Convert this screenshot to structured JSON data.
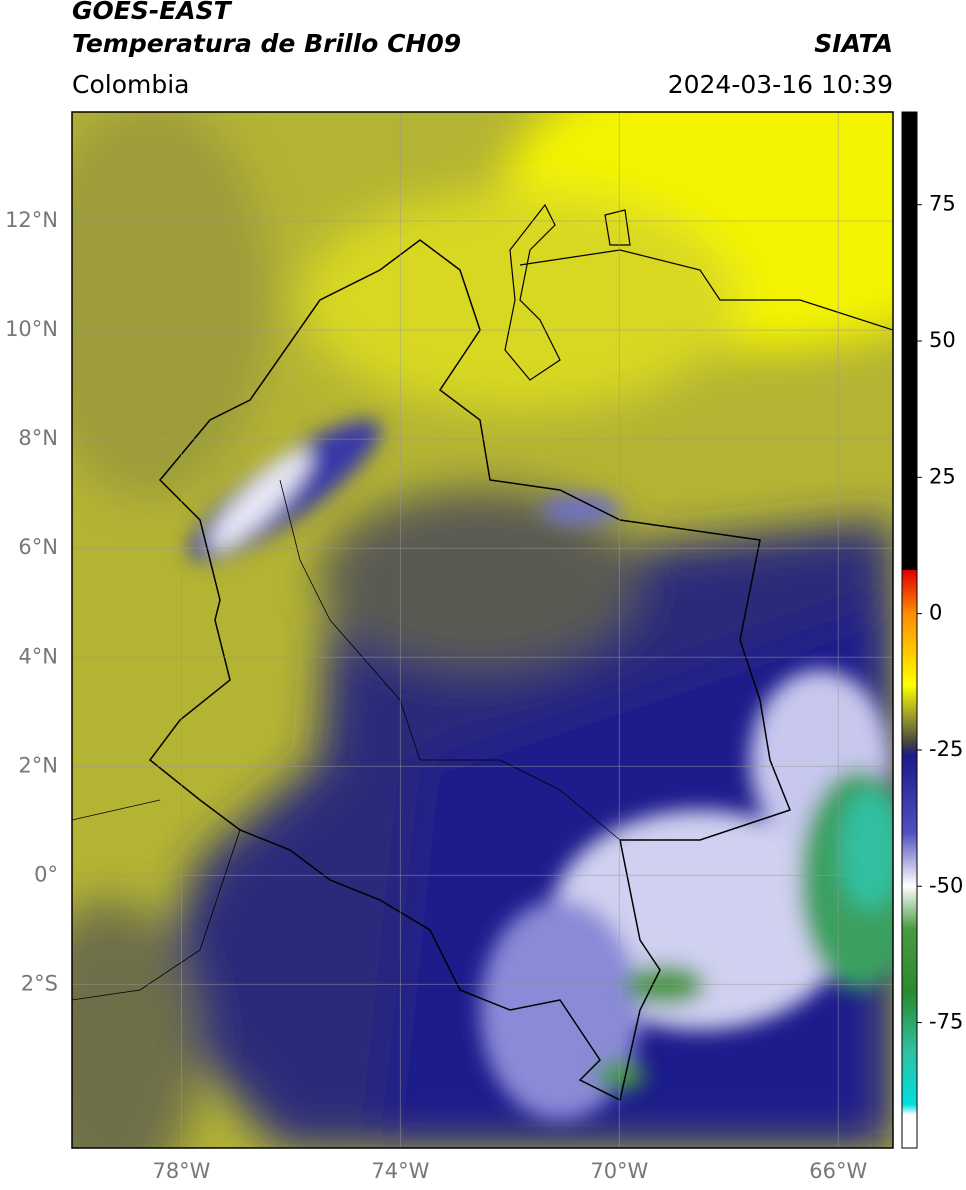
{
  "header": {
    "satellite": "GOES-EAST",
    "product": "Temperatura de Brillo CH09",
    "agency": "SIATA",
    "region": "Colombia",
    "datetime": "2024-03-16 10:39"
  },
  "map": {
    "xlim": [
      -80,
      -65
    ],
    "ylim": [
      -5,
      14
    ],
    "xticks": [
      {
        "value": -78,
        "label": "78°W"
      },
      {
        "value": -74,
        "label": "74°W"
      },
      {
        "value": -70,
        "label": "70°W"
      },
      {
        "value": -66,
        "label": "66°W"
      }
    ],
    "yticks": [
      {
        "value": 12,
        "label": "12°N"
      },
      {
        "value": 10,
        "label": "10°N"
      },
      {
        "value": 8,
        "label": "8°N"
      },
      {
        "value": 6,
        "label": "6°N"
      },
      {
        "value": 4,
        "label": "4°N"
      },
      {
        "value": 2,
        "label": "2°N"
      },
      {
        "value": 0,
        "label": "0°"
      },
      {
        "value": -2,
        "label": "2°S"
      }
    ],
    "grid": true
  },
  "colorbar": {
    "lim": [
      -98,
      92
    ],
    "ticks": [
      75,
      50,
      25,
      0,
      -25,
      -50,
      -75
    ]
  }
}
